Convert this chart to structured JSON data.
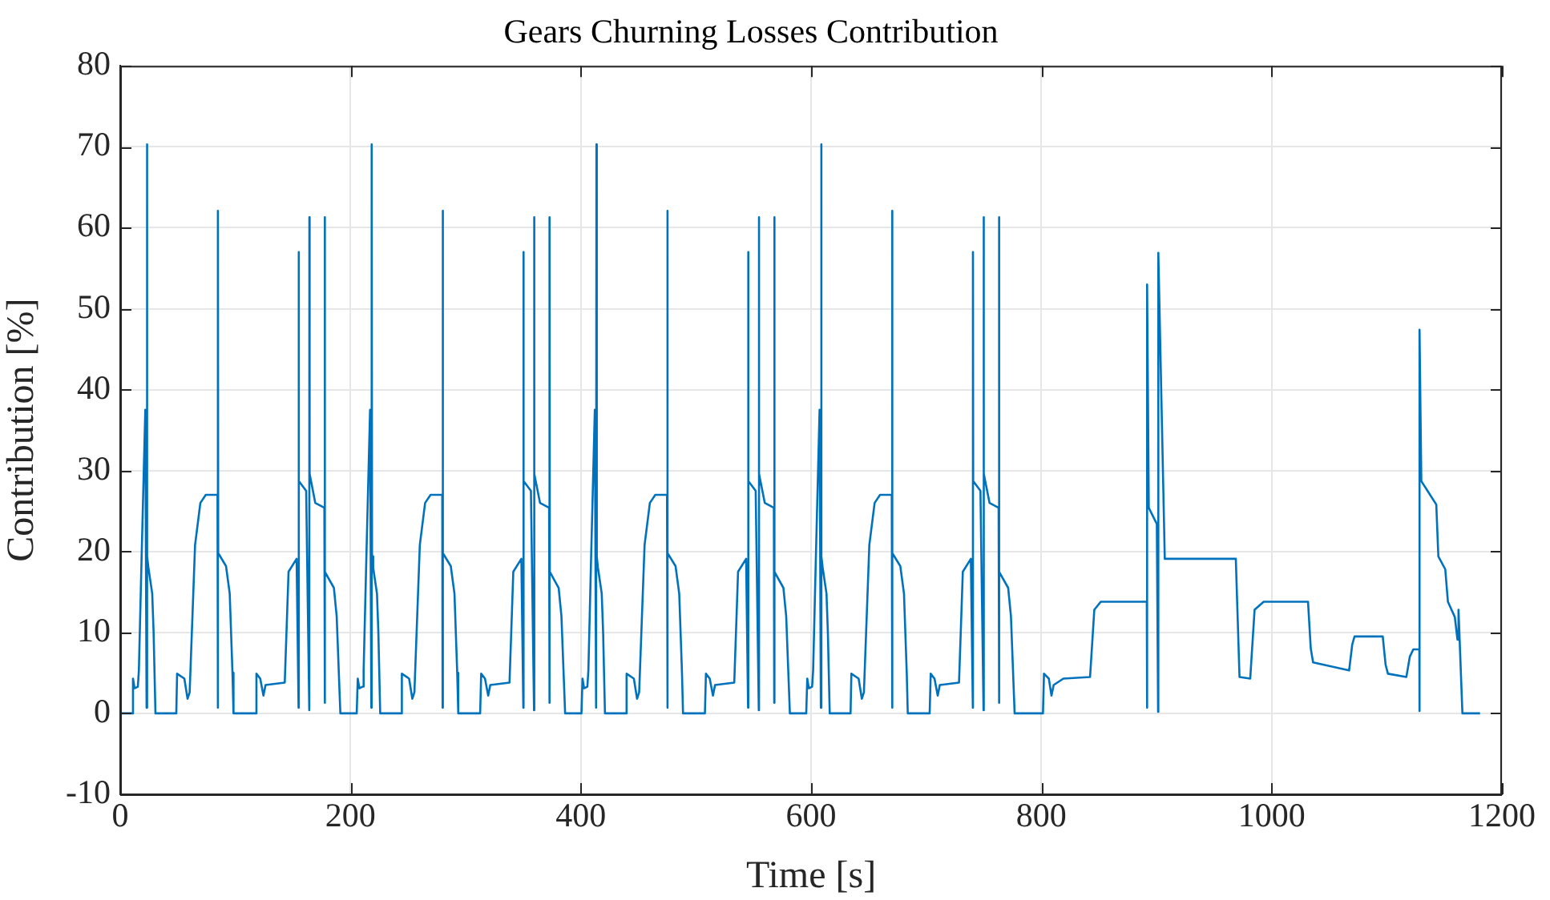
{
  "chart_data": {
    "type": "line",
    "title": "Gears Churning Losses Contribution",
    "xlabel": "Time [s]",
    "ylabel": "Contribution [%]",
    "xlim": [
      0,
      1200
    ],
    "xticks": [
      0,
      200,
      400,
      600,
      800,
      1000,
      1200
    ],
    "ylim": [
      -10,
      80
    ],
    "yticks": [
      -10,
      0,
      10,
      20,
      30,
      40,
      50,
      60,
      70,
      80
    ],
    "grid": true,
    "legend": false,
    "marker": "none",
    "line_style": "solid",
    "series": [
      {
        "color": "#0072bd",
        "x": [
          0,
          10.2,
          11.1,
          12.5,
          15.3,
          16.2,
          18.6,
          21.8,
          22.9,
          23.2,
          23.5,
          24.5,
          27.8,
          29.0,
          30.6,
          48.7,
          49.4,
          55.7,
          58.5,
          60.3,
          65.0,
          69.6,
          74.3,
          84.5,
          84.8,
          84.9,
          85.1,
          91.9,
          95.1,
          97.5,
          98.4,
          117.4,
          118.3,
          121.6,
          124.4,
          126.2,
          142.9,
          146.2,
          153.2,
          154.9,
          155.0,
          155.2,
          161.5,
          164.2,
          164.3,
          164.5,
          169.4,
          177.3,
          177.6,
          177.7,
          177.9,
          185.6,
          188.0,
          191.2,
          205.4,
          206.3,
          207.7,
          210.5,
          211.4,
          213.8,
          217.0,
          218.1,
          218.4,
          218.7,
          219.7,
          223.0,
          224.2,
          225.8,
          243.9,
          244.6,
          250.9,
          253.7,
          255.5,
          260.2,
          264.8,
          269.5,
          279.7,
          280.0,
          280.1,
          280.3,
          287.1,
          290.3,
          292.7,
          293.6,
          312.6,
          313.5,
          316.8,
          319.6,
          321.4,
          338.1,
          341.4,
          348.4,
          350.1,
          350.2,
          350.4,
          356.7,
          359.4,
          359.5,
          359.7,
          364.6,
          372.5,
          372.8,
          372.9,
          373.1,
          380.8,
          383.2,
          386.4,
          400.6,
          401.5,
          402.9,
          405.7,
          406.6,
          409.0,
          412.2,
          413.3,
          413.6,
          413.9,
          414.9,
          418.2,
          419.4,
          421.0,
          439.1,
          439.8,
          446.1,
          448.9,
          450.7,
          455.4,
          460.0,
          464.7,
          474.9,
          475.2,
          475.3,
          475.5,
          482.3,
          485.5,
          487.9,
          488.8,
          507.8,
          508.7,
          512.0,
          514.8,
          516.6,
          533.3,
          536.6,
          543.6,
          545.3,
          545.4,
          545.6,
          551.9,
          554.6,
          554.7,
          554.9,
          559.8,
          567.7,
          568.0,
          568.1,
          568.3,
          576.0,
          578.4,
          581.6,
          595.8,
          596.7,
          598.1,
          600.9,
          601.8,
          604.2,
          607.4,
          608.5,
          608.8,
          609.1,
          610.1,
          613.4,
          614.6,
          616.2,
          634.3,
          635.0,
          641.3,
          644.1,
          645.9,
          650.6,
          655.2,
          659.9,
          670.1,
          670.4,
          670.5,
          670.7,
          677.5,
          680.7,
          683.1,
          684.0,
          703.0,
          703.9,
          707.2,
          710.0,
          711.8,
          728.5,
          731.8,
          738.8,
          740.5,
          740.6,
          740.8,
          747.1,
          749.8,
          749.9,
          750.1,
          755.0,
          762.9,
          763.2,
          763.3,
          763.5,
          771.2,
          773.6,
          776.8,
          801.4,
          802.3,
          806.5,
          808.8,
          810.7,
          819.1,
          842.3,
          846.0,
          851.6,
          891.6,
          891.8,
          891.9,
          893.3,
          900.3,
          901.4,
          901.6,
          907.2,
          968.9,
          972.1,
          981.4,
          985.2,
          993.1,
          1031.6,
          1034.0,
          1036.0,
          1067.3,
          1070.0,
          1072.0,
          1096.5,
          1099.0,
          1101.0,
          1117.0,
          1120.0,
          1123.0,
          1128.3,
          1128.4,
          1128.5,
          1130.0,
          1143.0,
          1144.8,
          1150.8,
          1153.1,
          1159.1,
          1161.4,
          1162.3,
          1165.7,
          1181.0
        ],
        "values": [
          0,
          0,
          4.3,
          3.1,
          3.3,
          5.3,
          19.4,
          37.5,
          0.7,
          70.3,
          19.4,
          18.0,
          14.8,
          10,
          0,
          0,
          4.9,
          4.3,
          1.8,
          2.6,
          20.8,
          26,
          27.0,
          27.0,
          0.7,
          62.1,
          19.8,
          18.2,
          14.8,
          5,
          0,
          0,
          4.9,
          4.3,
          2.2,
          3.5,
          3.8,
          17.5,
          19.1,
          0.7,
          57.0,
          28.7,
          27.5,
          0.4,
          61.3,
          29.6,
          26,
          25.4,
          1.3,
          61.3,
          17.5,
          15.5,
          12,
          0,
          0,
          4.3,
          3.1,
          3.3,
          5.3,
          19.4,
          37.5,
          0.7,
          70.3,
          19.4,
          18.0,
          14.8,
          10,
          0,
          0,
          4.9,
          4.3,
          1.8,
          2.6,
          20.8,
          26,
          27.0,
          27.0,
          0.7,
          62.1,
          19.8,
          18.2,
          14.8,
          5,
          0,
          0,
          4.9,
          4.3,
          2.2,
          3.5,
          3.8,
          17.5,
          19.1,
          0.7,
          57.0,
          28.7,
          27.5,
          0.4,
          61.3,
          29.6,
          26,
          25.4,
          1.3,
          61.3,
          17.5,
          15.5,
          12,
          0,
          0,
          4.3,
          3.1,
          3.3,
          5.3,
          19.4,
          37.5,
          0.7,
          70.3,
          19.4,
          18.0,
          14.8,
          10,
          0,
          0,
          4.9,
          4.3,
          1.8,
          2.6,
          20.8,
          26,
          27.0,
          27.0,
          0.7,
          62.1,
          19.8,
          18.2,
          14.8,
          5,
          0,
          0,
          4.9,
          4.3,
          2.2,
          3.5,
          3.8,
          17.5,
          19.1,
          0.7,
          57.0,
          28.7,
          27.5,
          0.4,
          61.3,
          29.6,
          26,
          25.4,
          1.3,
          61.3,
          17.5,
          15.5,
          12,
          0,
          0,
          4.3,
          3.1,
          3.3,
          5.3,
          19.4,
          37.5,
          0.7,
          70.3,
          19.4,
          18.0,
          14.8,
          10,
          0,
          0,
          4.9,
          4.3,
          1.8,
          2.6,
          20.8,
          26,
          27.0,
          27.0,
          0.7,
          62.1,
          19.8,
          18.2,
          14.8,
          5,
          0,
          0,
          4.9,
          4.3,
          2.2,
          3.5,
          3.8,
          17.5,
          19.1,
          0.7,
          57.0,
          28.7,
          27.5,
          0.4,
          61.3,
          29.6,
          26,
          25.4,
          1.3,
          61.3,
          17.5,
          15.5,
          12,
          0,
          0,
          4.9,
          4.3,
          2.2,
          3.5,
          4.3,
          4.5,
          12.8,
          13.8,
          13.8,
          0.7,
          53.0,
          25.4,
          23.4,
          0.2,
          56.9,
          19.1,
          19.1,
          4.5,
          4.3,
          12.8,
          13.8,
          13.8,
          8,
          6.3,
          5.3,
          8.5,
          9.5,
          9.5,
          6,
          4.9,
          4.5,
          7.0,
          7.9,
          7.9,
          0.3,
          47.4,
          28.7,
          25.8,
          19.4,
          17.8,
          13.8,
          11.9,
          9.1,
          12.8,
          0,
          0
        ]
      }
    ]
  }
}
